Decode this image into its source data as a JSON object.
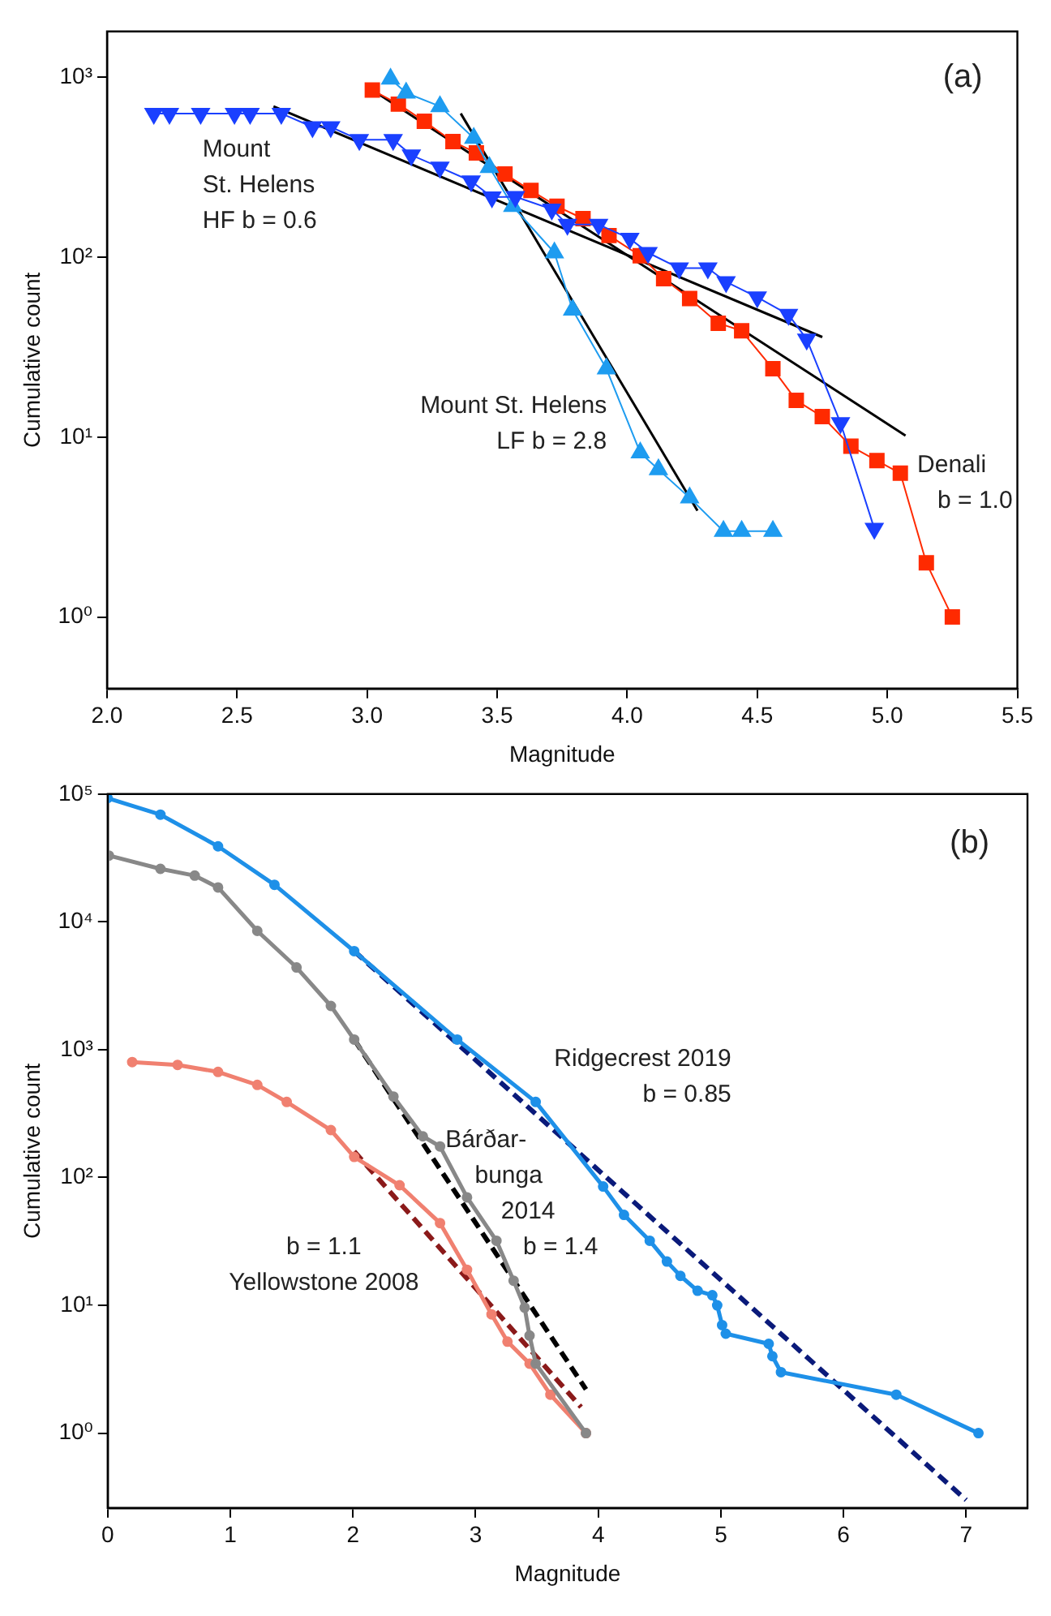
{
  "chart_data": [
    {
      "type": "line",
      "xlabel": "Magnitude",
      "ylabel": "Cumulative count",
      "log": "y",
      "grid": false,
      "legend": false,
      "xlim": [
        2,
        5.5
      ],
      "ylim": [
        0.4,
        1800
      ],
      "xticks": [
        {
          "value": 2,
          "label": "2.0"
        },
        2.5,
        {
          "value": 3,
          "label": "3.0"
        },
        3.5,
        {
          "value": 4,
          "label": "4.0"
        },
        4.5,
        {
          "value": 5,
          "label": "5.0"
        },
        5.5
      ],
      "yticks": [
        {
          "value": 1,
          "label": "10⁰"
        },
        {
          "value": 10,
          "label": "10¹"
        },
        {
          "value": 100,
          "label": "10²"
        },
        {
          "value": 1000,
          "label": "10³"
        }
      ],
      "series": [
        {
          "color": "#1a40ff",
          "marker": "triangle",
          "x": [
            2.18,
            2.24,
            2.36,
            2.49,
            2.55,
            2.67,
            2.79,
            2.86,
            2.97,
            3.1,
            3.17,
            3.28,
            3.4,
            3.48,
            3.57,
            3.71,
            3.77,
            3.89,
            4.01,
            4.08,
            4.2,
            4.31,
            4.38,
            4.5,
            4.62,
            4.69,
            4.82,
            4.95
          ],
          "values": [
            630,
            630,
            630,
            630,
            630,
            630,
            530,
            530,
            450,
            450,
            370,
            316,
            265,
            216,
            217,
            185,
            152,
            152,
            127,
            106,
            87,
            87,
            73,
            60,
            48,
            35,
            12,
            3.1
          ]
        },
        {
          "color": "#1e9cf0",
          "marker": "triangle",
          "x": [
            3.09,
            3.15,
            3.28,
            3.41,
            3.47,
            3.56,
            3.72,
            3.79,
            3.92,
            4.05,
            4.12,
            4.24,
            4.37,
            4.44,
            4.56
          ],
          "values": [
            980,
            820,
            690,
            460,
            316,
            192,
            106,
            51,
            24,
            8.2,
            6.6,
            4.6,
            3,
            3,
            3
          ]
        },
        {
          "color": "#ff2a00",
          "marker": "square",
          "x": [
            3.02,
            3.12,
            3.22,
            3.33,
            3.42,
            3.53,
            3.63,
            3.73,
            3.83,
            3.93,
            4.05,
            4.14,
            4.24,
            4.35,
            4.44,
            4.56,
            4.65,
            4.75,
            4.86,
            4.96,
            5.05,
            5.15,
            5.25
          ],
          "values": [
            850,
            710,
            570,
            440,
            380,
            290,
            235,
            192,
            164,
            132,
            102,
            76,
            59,
            43,
            39,
            24,
            16,
            13,
            8.9,
            7.4,
            6.3,
            2,
            1
          ]
        },
        {
          "color": "#000000",
          "marker": "none",
          "line_style": "solid",
          "x": [
            2.64,
            4.75
          ],
          "values": [
            690,
            36
          ]
        },
        {
          "color": "#000000",
          "marker": "none",
          "line_style": "solid",
          "x": [
            3.36,
            4.27
          ],
          "values": [
            630,
            3.9
          ]
        },
        {
          "color": "#000000",
          "marker": "none",
          "line_style": "solid",
          "x": [
            3.02,
            5.07
          ],
          "values": [
            850,
            10.2
          ]
        }
      ],
      "annotations": [
        "(a)",
        "Mount\nSt. Helens\nHF b = 0.6",
        "Mount St. Helens\nLF b = 2.8",
        "Denali\n   b = 1.0"
      ]
    },
    {
      "type": "line",
      "xlabel": "Magnitude",
      "ylabel": "Cumulative count",
      "log": "y",
      "grid": false,
      "legend": false,
      "xlim": [
        0,
        7.5
      ],
      "ylim": [
        0.26,
        100000
      ],
      "xticks": [
        0,
        1,
        2,
        3,
        4,
        5,
        6,
        7
      ],
      "yticks": [
        {
          "value": 1,
          "label": "10⁰"
        },
        {
          "value": 10,
          "label": "10¹"
        },
        {
          "value": 100,
          "label": "10²"
        },
        {
          "value": 1000,
          "label": "10³"
        },
        {
          "value": 10000,
          "label": "10⁴"
        },
        {
          "value": 100000,
          "label": "10⁵"
        }
      ],
      "series": [
        {
          "color": "#1e90e8",
          "marker": "circle",
          "x": [
            0,
            0.43,
            0.9,
            1.36,
            2.01,
            2.85,
            3.49,
            4.04,
            4.21,
            4.42,
            4.56,
            4.67,
            4.81,
            4.93,
            4.97,
            5.01,
            5.04,
            5.39,
            5.42,
            5.49,
            6.43,
            7.1
          ],
          "values": [
            93000,
            69000,
            39000,
            19500,
            5900,
            1200,
            390,
            85,
            51,
            32,
            22,
            17,
            13,
            12,
            10,
            7,
            6,
            5,
            4,
            3,
            2,
            1
          ]
        },
        {
          "color": "#888888",
          "marker": "circle",
          "x": [
            0.01,
            0.43,
            0.71,
            0.9,
            1.22,
            1.54,
            1.82,
            2.01,
            2.33,
            2.57,
            2.71,
            2.93,
            3.17,
            3.31,
            3.4,
            3.44,
            3.49,
            3.9
          ],
          "values": [
            33000,
            26000,
            23000,
            18600,
            8500,
            4400,
            2200,
            1200,
            430,
            210,
            175,
            70,
            32,
            15.6,
            9.6,
            5.8,
            3.5,
            1
          ]
        },
        {
          "color": "#f08070",
          "marker": "circle",
          "x": [
            0.2,
            0.57,
            0.9,
            1.22,
            1.46,
            1.82,
            2.01,
            2.38,
            2.71,
            2.93,
            3.13,
            3.26,
            3.44,
            3.61,
            3.9
          ],
          "values": [
            800,
            760,
            670,
            530,
            390,
            235,
            145,
            87,
            44,
            19,
            8.5,
            5.2,
            3.5,
            2,
            1
          ]
        },
        {
          "color": "#0a1a7a",
          "marker": "none",
          "line_style": "dashed",
          "x": [
            2.01,
            7.0
          ],
          "values": [
            5900,
            0.3
          ]
        },
        {
          "color": "#000000",
          "marker": "none",
          "line_style": "dashed",
          "x": [
            2.01,
            3.9
          ],
          "values": [
            1200,
            2.2
          ]
        },
        {
          "color": "#8b1a1a",
          "marker": "none",
          "line_style": "dashed",
          "x": [
            2.01,
            3.86
          ],
          "values": [
            160,
            1.6
          ]
        }
      ],
      "annotations": [
        "(b)",
        "Ridgecrest 2019\nb = 0.85",
        "Bárðar-\nbunga\n2014\nb = 1.4",
        "b = 1.1\nYellowstone 2008"
      ]
    }
  ]
}
